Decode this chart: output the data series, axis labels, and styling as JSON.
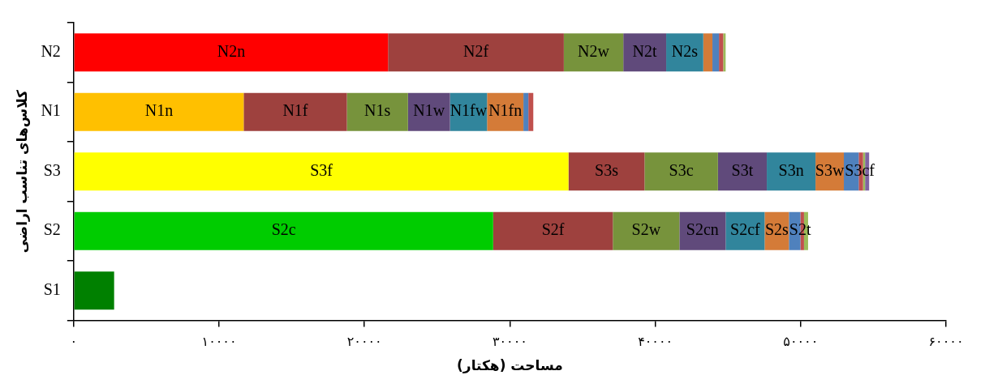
{
  "chart_data": {
    "type": "bar",
    "orientation": "horizontal",
    "stacked": true,
    "xlabel": "مساحت (هکتار)",
    "ylabel": "کلاس‌های تناسب اراضی",
    "categories": [
      "N2",
      "N1",
      "S3",
      "S2",
      "S1"
    ],
    "series": [
      {
        "colors": [
          "#ff0000",
          "#ffc000",
          "#ffff00",
          "#00cc00",
          "#008000"
        ],
        "values": [
          21620,
          11690,
          34030,
          28850,
          2780
        ],
        "value_labels": [
          "N2n",
          "N1n",
          "S3f",
          "S2c",
          null
        ]
      },
      {
        "color": "#9e413e",
        "values": [
          12090,
          7100,
          5230,
          8230,
          null
        ],
        "value_labels": [
          "N2f",
          "N1f",
          "S3s",
          "S2f",
          null
        ]
      },
      {
        "color": "#77933c",
        "values": [
          4090,
          4200,
          5050,
          4580,
          null
        ],
        "value_labels": [
          "N2w",
          "N1s",
          "S3c",
          "S2w",
          null
        ]
      },
      {
        "color": "#604a7b",
        "values": [
          2950,
          2890,
          3360,
          3180,
          null
        ],
        "value_labels": [
          "N2t",
          "N1w",
          "S3t",
          "S2cn",
          null
        ]
      },
      {
        "color": "#31859c",
        "values": [
          2550,
          2550,
          3350,
          2680,
          null
        ],
        "value_labels": [
          "N2s",
          "N1fw",
          "S3n",
          "S2cf",
          null
        ]
      },
      {
        "color": "#d47b38",
        "values": [
          630,
          2500,
          1950,
          1670,
          null
        ],
        "value_labels": [
          null,
          "N1fn",
          "S3w",
          "S2s",
          null
        ]
      },
      {
        "color": "#4f81bd",
        "values": [
          450,
          340,
          1020,
          790,
          null
        ],
        "value_labels": [
          null,
          null,
          "S3cf",
          "S2t",
          null
        ]
      },
      {
        "color": "#c0504d",
        "values": [
          290,
          340,
          300,
          250,
          null
        ]
      },
      {
        "color": "#9bbb59",
        "values": [
          170,
          null,
          140,
          280,
          null
        ]
      },
      {
        "color": "#8064a2",
        "values": [
          null,
          null,
          280,
          null,
          null
        ]
      }
    ],
    "xlim": [
      0,
      60000
    ],
    "xticks": [
      {
        "value": 0,
        "label": "۰"
      },
      {
        "value": 10000,
        "label": "۱۰۰۰۰"
      },
      {
        "value": 20000,
        "label": "۲۰۰۰۰"
      },
      {
        "value": 30000,
        "label": "۳۰۰۰۰"
      },
      {
        "value": 40000,
        "label": "۴۰۰۰۰"
      },
      {
        "value": 50000,
        "label": "۵۰۰۰۰"
      },
      {
        "value": 60000,
        "label": "۶۰۰۰۰"
      }
    ],
    "grid": false,
    "legend": false
  }
}
